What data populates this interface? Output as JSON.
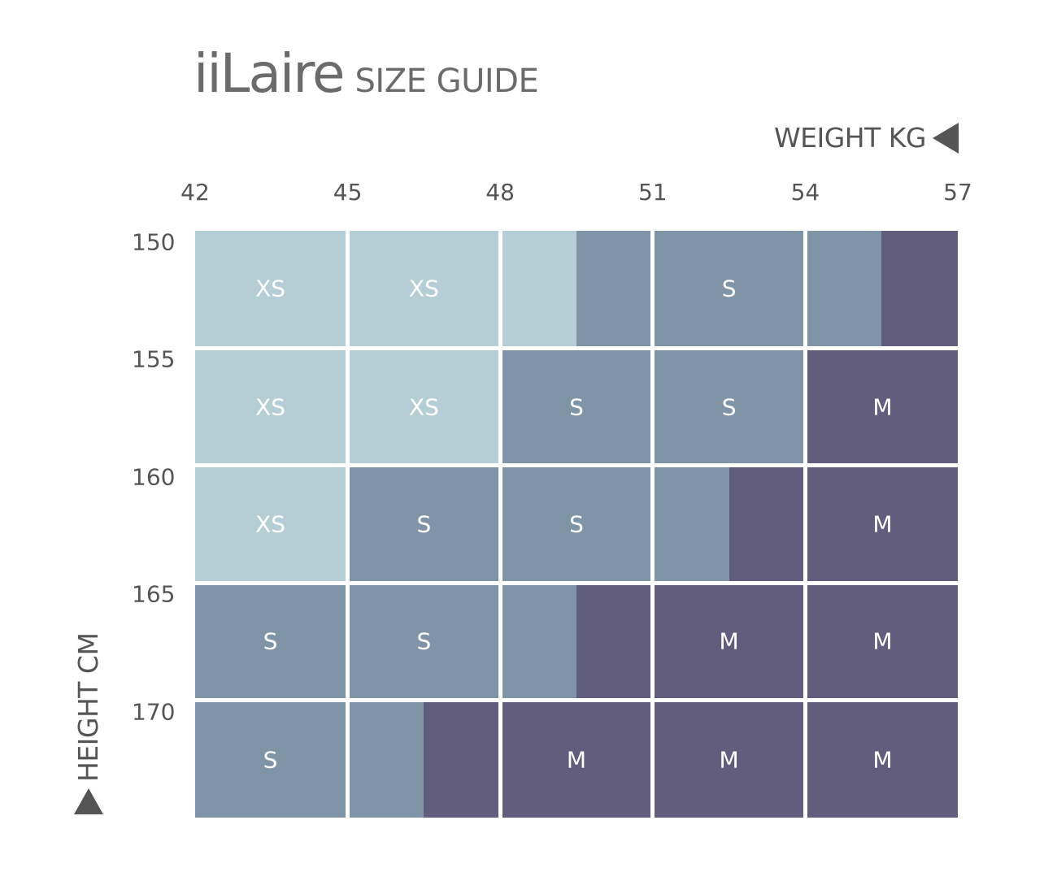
{
  "header": {
    "brand": "iiLaire",
    "subtitle": "SIZE GUIDE"
  },
  "colors": {
    "XS": "#b5ced5",
    "S": "#8094a8",
    "M": "#625d7c",
    "gridline": "#ffffff",
    "text": "#555555",
    "background": "#ffffff"
  },
  "chart_data": {
    "type": "heatmap",
    "xlabel": "WEIGHT KG",
    "ylabel": "HEIGHT CM",
    "x_ticks": [
      "42",
      "45",
      "48",
      "51",
      "54",
      "57"
    ],
    "y_ticks": [
      "150",
      "155",
      "160",
      "165",
      "170"
    ],
    "x_edges": [
      42,
      45,
      48,
      51,
      54,
      57
    ],
    "y_edges": [
      150,
      155,
      160,
      165,
      170,
      175
    ],
    "xlim": [
      42,
      57
    ],
    "ylim": [
      150,
      175
    ],
    "legend": "none",
    "rows": [
      {
        "height_from": 150,
        "height_to": 155,
        "cells": [
          {
            "label": "XS",
            "segments": [
              {
                "size": "XS",
                "from": 42,
                "to": 45
              }
            ]
          },
          {
            "label": "XS",
            "segments": [
              {
                "size": "XS",
                "from": 45,
                "to": 48
              }
            ]
          },
          {
            "label": "",
            "segments": [
              {
                "size": "XS",
                "from": 48,
                "to": 49.5
              },
              {
                "size": "S",
                "from": 49.5,
                "to": 51
              }
            ]
          },
          {
            "label": "S",
            "segments": [
              {
                "size": "S",
                "from": 51,
                "to": 54
              }
            ]
          },
          {
            "label": "",
            "segments": [
              {
                "size": "S",
                "from": 54,
                "to": 55.5
              },
              {
                "size": "M",
                "from": 55.5,
                "to": 57
              }
            ]
          }
        ]
      },
      {
        "height_from": 155,
        "height_to": 160,
        "cells": [
          {
            "label": "XS",
            "segments": [
              {
                "size": "XS",
                "from": 42,
                "to": 45
              }
            ]
          },
          {
            "label": "XS",
            "segments": [
              {
                "size": "XS",
                "from": 45,
                "to": 48
              }
            ]
          },
          {
            "label": "S",
            "segments": [
              {
                "size": "S",
                "from": 48,
                "to": 51
              }
            ]
          },
          {
            "label": "S",
            "segments": [
              {
                "size": "S",
                "from": 51,
                "to": 54
              }
            ]
          },
          {
            "label": "M",
            "segments": [
              {
                "size": "M",
                "from": 54,
                "to": 57
              }
            ]
          }
        ]
      },
      {
        "height_from": 160,
        "height_to": 165,
        "cells": [
          {
            "label": "XS",
            "segments": [
              {
                "size": "XS",
                "from": 42,
                "to": 45
              }
            ]
          },
          {
            "label": "S",
            "segments": [
              {
                "size": "S",
                "from": 45,
                "to": 48
              }
            ]
          },
          {
            "label": "S",
            "segments": [
              {
                "size": "S",
                "from": 48,
                "to": 51
              }
            ]
          },
          {
            "label": "",
            "segments": [
              {
                "size": "S",
                "from": 51,
                "to": 52.5
              },
              {
                "size": "M",
                "from": 52.5,
                "to": 54
              }
            ]
          },
          {
            "label": "M",
            "segments": [
              {
                "size": "M",
                "from": 54,
                "to": 57
              }
            ]
          }
        ]
      },
      {
        "height_from": 165,
        "height_to": 170,
        "cells": [
          {
            "label": "S",
            "segments": [
              {
                "size": "S",
                "from": 42,
                "to": 45
              }
            ]
          },
          {
            "label": "S",
            "segments": [
              {
                "size": "S",
                "from": 45,
                "to": 48
              }
            ]
          },
          {
            "label": "",
            "segments": [
              {
                "size": "S",
                "from": 48,
                "to": 49.5
              },
              {
                "size": "M",
                "from": 49.5,
                "to": 51
              }
            ]
          },
          {
            "label": "M",
            "segments": [
              {
                "size": "M",
                "from": 51,
                "to": 54
              }
            ]
          },
          {
            "label": "M",
            "segments": [
              {
                "size": "M",
                "from": 54,
                "to": 57
              }
            ]
          }
        ]
      },
      {
        "height_from": 170,
        "height_to": 175,
        "cells": [
          {
            "label": "S",
            "segments": [
              {
                "size": "S",
                "from": 42,
                "to": 45
              }
            ]
          },
          {
            "label": "",
            "segments": [
              {
                "size": "S",
                "from": 45,
                "to": 46.5
              },
              {
                "size": "M",
                "from": 46.5,
                "to": 48
              }
            ]
          },
          {
            "label": "M",
            "segments": [
              {
                "size": "M",
                "from": 48,
                "to": 51
              }
            ]
          },
          {
            "label": "M",
            "segments": [
              {
                "size": "M",
                "from": 51,
                "to": 54
              }
            ]
          },
          {
            "label": "M",
            "segments": [
              {
                "size": "M",
                "from": 54,
                "to": 57
              }
            ]
          }
        ]
      }
    ]
  }
}
